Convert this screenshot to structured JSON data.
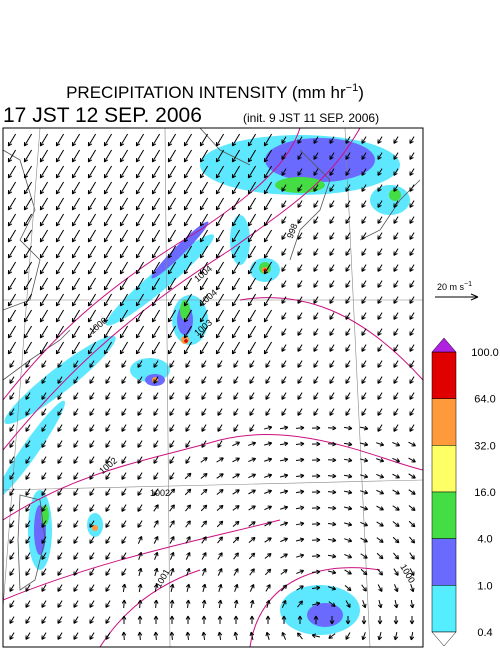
{
  "header": {
    "title_main": "PRECIPITATION INTENSITY (mm hr",
    "title_sup": "−1",
    "title_end": ")",
    "valid_time": "17 JST 12 SEP. 2006",
    "init_time": "(init. 9 JST 11 SEP. 2006)"
  },
  "wind_scale": {
    "label": "20 m s",
    "label_sup": "−1"
  },
  "colorbar": {
    "levels": [
      "100.0",
      "64.0",
      "32.0",
      "16.0",
      "4.0",
      "1.0",
      "0.4"
    ],
    "colors": [
      "#e00000",
      "#ff9a3c",
      "#ffff66",
      "#44dd44",
      "#6a6aff",
      "#55eeff"
    ],
    "over_color": "#b020e0",
    "under_color": "#ffffff"
  },
  "isobars": [
    {
      "label": "1006"
    },
    {
      "label": "1004"
    },
    {
      "label": "1004"
    },
    {
      "label": "1003"
    },
    {
      "label": "998"
    },
    {
      "label": "1002"
    },
    {
      "label": "1002"
    },
    {
      "label": "1001"
    },
    {
      "label": "1000"
    }
  ]
}
